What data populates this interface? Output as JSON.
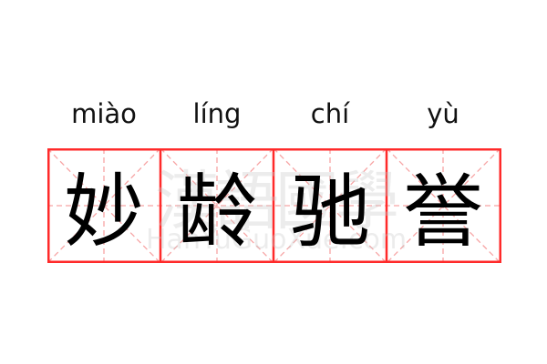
{
  "word": {
    "characters": [
      "妙",
      "龄",
      "驰",
      "誉"
    ],
    "pinyin": [
      "miào",
      "líng",
      "chí",
      "yù"
    ]
  },
  "watermark": {
    "chinese": "漢語國學",
    "latin": "HanYuGuoXue.com"
  },
  "colors": {
    "border": "#ff2a2a",
    "guide": "#f7a5a5",
    "text": "#000000"
  }
}
